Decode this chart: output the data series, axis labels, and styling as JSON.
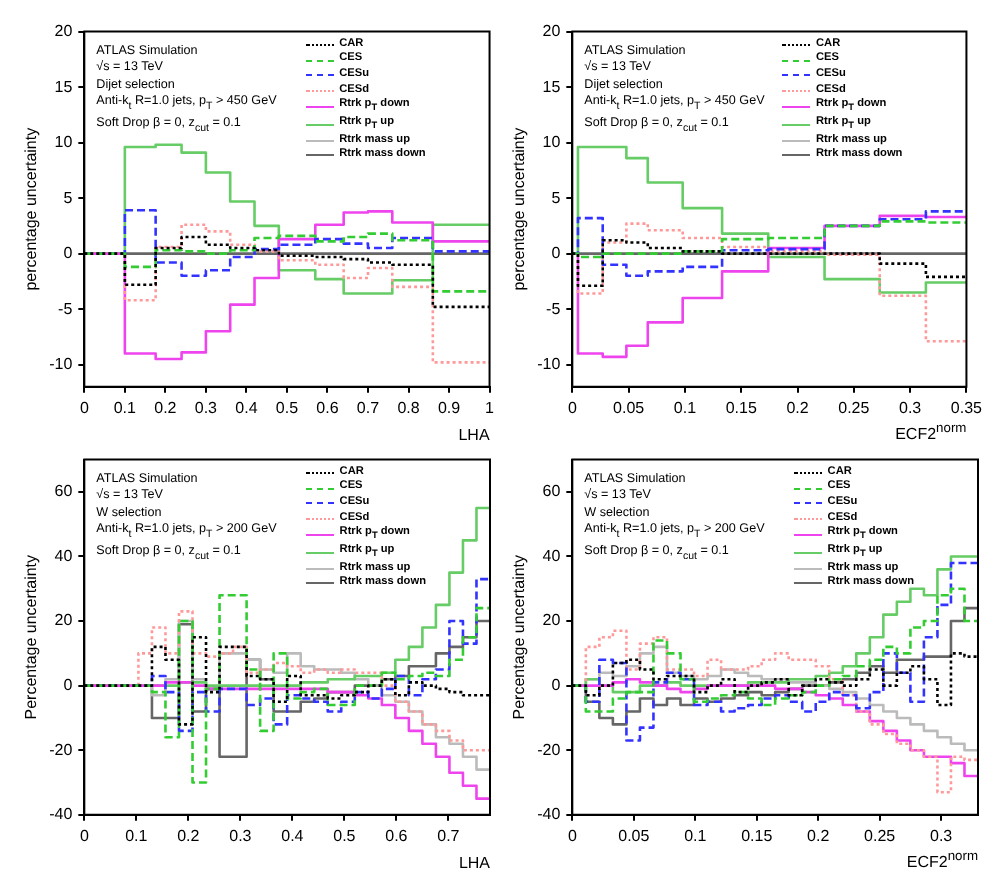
{
  "chart_data": [
    {
      "type": "step",
      "xlabel": "LHA",
      "ylabel": "percentage uncertainty",
      "legend": "top right",
      "xlim": [
        0,
        1
      ],
      "xticks": [
        0,
        0.1,
        0.2,
        0.3,
        0.4,
        0.5,
        0.6,
        0.7,
        0.8,
        0.9,
        1
      ],
      "ylim": [
        -12,
        20
      ],
      "yticks": [
        -10,
        -5,
        0,
        5,
        10,
        15,
        20
      ],
      "annotations": [
        "ATLAS Simulation",
        "√s = 13 TeV",
        "Dijet selection",
        "Anti-k$_{t}$ R=1.0 jets, p$_{T}$ > 450 GeV",
        "Soft Drop β = 0, z$_{cut}$ = 0.1"
      ],
      "x": [
        0,
        0.1,
        0.176,
        0.24,
        0.3,
        0.36,
        0.42,
        0.48,
        0.57,
        0.64,
        0.7,
        0.76,
        0.86,
        1
      ],
      "series": [
        {
          "name": "CAR",
          "color": "#000000",
          "line_style": "dotted",
          "values": [
            0,
            -2.8,
            0.5,
            1.5,
            0.8,
            0.5,
            0.3,
            -0.2,
            -0.3,
            -0.5,
            -0.8,
            -1.0,
            -4.8,
            -4.8
          ]
        },
        {
          "name": "CES",
          "color": "#33cc33",
          "line_style": "dashed",
          "values": [
            0,
            -1.2,
            0.3,
            0.2,
            0.0,
            0.3,
            1.4,
            1.6,
            1.1,
            1.5,
            1.8,
            1.2,
            -3.4,
            -3.4
          ]
        },
        {
          "name": "CESu",
          "color": "#3333ff",
          "line_style": "dashed",
          "values": [
            0,
            3.9,
            -0.8,
            -2.0,
            -1.5,
            -0.3,
            0.4,
            0.8,
            1.3,
            0.9,
            0.5,
            1.4,
            0.2,
            0.2
          ]
        },
        {
          "name": "CESd",
          "color": "#ff9999",
          "line_style": "dotted",
          "values": [
            0,
            -4.2,
            0.6,
            2.6,
            2.0,
            0.8,
            0.2,
            -0.6,
            -1.0,
            -2.2,
            -1.3,
            -3.0,
            -9.8,
            -9.8
          ]
        },
        {
          "name": "Rtrk p$_{T}$ down",
          "color": "#ee44ee",
          "line_style": "solid",
          "values": [
            0,
            -9.0,
            -9.5,
            -8.9,
            -7.0,
            -4.6,
            -2.2,
            1.3,
            2.6,
            3.7,
            3.8,
            2.8,
            1.1,
            1.1
          ]
        },
        {
          "name": "Rtrk p$_{T}$ up",
          "color": "#66cc66",
          "line_style": "solid",
          "values": [
            0,
            9.6,
            9.8,
            9.1,
            7.3,
            4.7,
            2.5,
            -1.5,
            -2.3,
            -3.6,
            -3.6,
            -2.4,
            2.6,
            2.6
          ]
        },
        {
          "name": "Rtrk mass up",
          "color": "#bbbbbb",
          "line_style": "solid",
          "values": [
            null,
            null,
            null,
            null,
            null,
            null,
            null,
            null,
            null,
            null,
            null,
            null,
            null,
            null
          ]
        },
        {
          "name": "Rtrk mass down",
          "color": "#666666",
          "line_style": "solid",
          "values": [
            0,
            0,
            0,
            0,
            0,
            0,
            0,
            0,
            0,
            0,
            0,
            0,
            0,
            0
          ]
        }
      ]
    },
    {
      "type": "step",
      "xlabel": "ECF2$^{norm}$",
      "ylabel": "percentage uncertainty",
      "legend": "top right",
      "xlim": [
        0,
        0.35
      ],
      "xticks": [
        0,
        0.05,
        0.1,
        0.15,
        0.2,
        0.25,
        0.3,
        0.35
      ],
      "ylim": [
        -12,
        20
      ],
      "yticks": [
        -10,
        -5,
        0,
        5,
        10,
        15,
        20
      ],
      "annotations": [
        "ATLAS Simulation",
        "√s = 13 TeV",
        "Dijet selection",
        "Anti-k$_{t}$ R=1.0 jets, p$_{T}$ > 450 GeV",
        "Soft Drop β = 0, z$_{cut}$ = 0.1"
      ],
      "x": [
        0,
        0.005,
        0.027,
        0.048,
        0.067,
        0.098,
        0.133,
        0.174,
        0.224,
        0.273,
        0.314,
        0.35
      ],
      "series": [
        {
          "name": "CAR",
          "color": "#000000",
          "line_style": "dotted",
          "values": [
            0,
            -2.9,
            1.2,
            1.0,
            0.5,
            0.2,
            0.0,
            0.0,
            0.0,
            -0.9,
            -2.1,
            -2.1
          ]
        },
        {
          "name": "CES",
          "color": "#33cc33",
          "line_style": "dashed",
          "values": [
            0,
            -0.3,
            0.0,
            0.0,
            0.0,
            0.2,
            1.3,
            1.4,
            2.5,
            2.9,
            2.8,
            2.8
          ]
        },
        {
          "name": "CESu",
          "color": "#3333ff",
          "line_style": "dashed",
          "values": [
            0,
            3.2,
            -1.0,
            -2.0,
            -1.6,
            -1.2,
            0.3,
            0.4,
            2.5,
            3.1,
            3.8,
            3.8
          ]
        },
        {
          "name": "CESd",
          "color": "#ff9999",
          "line_style": "dotted",
          "values": [
            0,
            -3.6,
            1.0,
            2.7,
            2.1,
            1.4,
            0.6,
            0.2,
            -0.1,
            -3.8,
            -7.9,
            -7.9
          ]
        },
        {
          "name": "Rtrk p$_{T}$ down",
          "color": "#ee44ee",
          "line_style": "solid",
          "values": [
            0,
            -9.0,
            -9.3,
            -8.3,
            -6.2,
            -4.0,
            -1.6,
            0.5,
            2.5,
            3.4,
            3.3,
            3.3
          ]
        },
        {
          "name": "Rtrk p$_{T}$ up",
          "color": "#66cc66",
          "line_style": "solid",
          "values": [
            0,
            9.6,
            9.6,
            8.6,
            6.4,
            4.1,
            1.8,
            -0.3,
            -2.3,
            -3.5,
            -2.6,
            -2.6
          ]
        },
        {
          "name": "Rtrk mass up",
          "color": "#bbbbbb",
          "line_style": "solid",
          "values": [
            null,
            null,
            null,
            null,
            null,
            null,
            null,
            null,
            null,
            null,
            null,
            null
          ]
        },
        {
          "name": "Rtrk mass down",
          "color": "#666666",
          "line_style": "solid",
          "values": [
            0,
            0,
            0,
            0,
            0,
            0,
            0,
            0,
            0,
            0,
            0,
            0
          ]
        }
      ]
    },
    {
      "type": "step",
      "xlabel": "LHA",
      "ylabel": "Percentage uncertainty",
      "legend": "top right",
      "xlim": [
        0,
        0.78
      ],
      "xticks": [
        0,
        0.1,
        0.2,
        0.3,
        0.4,
        0.5,
        0.6,
        0.7
      ],
      "ylim": [
        -40,
        70
      ],
      "yticks": [
        -40,
        -20,
        0,
        20,
        40,
        60
      ],
      "annotations": [
        "ATLAS Simulation",
        "√s = 13 TeV",
        "W selection",
        "Anti-k$_{t}$ R=1.0 jets, p$_{T}$ > 200 GeV",
        "Soft Drop β = 0, z$_{cut}$ = 0.1"
      ],
      "x": [
        0,
        0.104,
        0.13,
        0.156,
        0.182,
        0.208,
        0.234,
        0.26,
        0.286,
        0.312,
        0.338,
        0.364,
        0.39,
        0.416,
        0.442,
        0.468,
        0.494,
        0.52,
        0.546,
        0.572,
        0.598,
        0.624,
        0.65,
        0.676,
        0.702,
        0.728,
        0.754,
        0.78
      ],
      "series": [
        {
          "name": "CAR",
          "color": "#000000",
          "line_style": "dotted",
          "values": [
            0,
            0,
            12,
            8,
            -12,
            15,
            -2,
            12,
            12,
            3,
            2,
            -5,
            3,
            -3,
            -3,
            -4,
            -3,
            -2,
            0,
            2,
            -3,
            1,
            0,
            -1,
            -2,
            -3,
            -3,
            -3
          ]
        },
        {
          "name": "CES",
          "color": "#33cc33",
          "line_style": "dashed",
          "values": [
            0,
            0,
            -2,
            -16,
            20,
            -30,
            -1,
            28,
            28,
            5,
            -14,
            10,
            -4,
            -2,
            -1,
            -6,
            -6,
            0,
            0,
            4,
            2,
            3,
            4,
            3,
            8,
            15,
            24,
            24
          ]
        },
        {
          "name": "CESu",
          "color": "#3333ff",
          "line_style": "dashed",
          "values": [
            0,
            0,
            3,
            -2,
            -14,
            -2,
            -8,
            -1,
            -1,
            -6,
            -4,
            -12,
            -3,
            -4,
            -5,
            -8,
            -5,
            -2,
            -4,
            -1,
            3,
            -3,
            2,
            5,
            20,
            13,
            33,
            33
          ]
        },
        {
          "name": "CESd",
          "color": "#ff9999",
          "line_style": "dotted",
          "values": [
            0,
            10,
            18,
            10,
            23,
            10,
            9,
            10,
            12,
            4,
            5,
            7,
            6,
            4,
            5,
            4,
            5,
            4,
            4,
            0,
            -5,
            -8,
            -12,
            -14,
            -17,
            -20,
            -20,
            -20
          ]
        },
        {
          "name": "Rtrk p$_{T}$ down",
          "color": "#ee44ee",
          "line_style": "solid",
          "values": [
            0,
            0,
            0,
            1,
            1,
            0,
            -1,
            -1,
            -1,
            -1,
            -1,
            -1,
            -1,
            -1,
            -1,
            -2,
            -2,
            -3,
            -4,
            -6,
            -10,
            -14,
            -18,
            -22,
            -27,
            -31,
            -35,
            -35
          ]
        },
        {
          "name": "Rtrk p$_{T}$ up",
          "color": "#66cc66",
          "line_style": "solid",
          "values": [
            0,
            0,
            0,
            0,
            1,
            1,
            0,
            0,
            0,
            0,
            0,
            0,
            0,
            1,
            1,
            2,
            2,
            3,
            3,
            4,
            8,
            12,
            18,
            25,
            35,
            45,
            55,
            55
          ]
        },
        {
          "name": "Rtrk mass up",
          "color": "#bbbbbb",
          "line_style": "solid",
          "values": [
            0,
            0,
            -3,
            2,
            20,
            2,
            -1,
            10,
            10,
            8,
            5,
            4,
            10,
            6,
            5,
            5,
            4,
            2,
            0,
            -3,
            -5,
            -8,
            -12,
            -16,
            -18,
            -22,
            -26,
            -26
          ]
        },
        {
          "name": "Rtrk mass down",
          "color": "#666666",
          "line_style": "solid",
          "values": [
            0,
            0,
            -10,
            -10,
            19,
            -8,
            -1,
            -22,
            -22,
            8,
            2,
            -8,
            -8,
            -5,
            -4,
            -2,
            -2,
            0,
            0,
            2,
            3,
            6,
            6,
            10,
            12,
            15,
            20,
            20
          ]
        }
      ]
    },
    {
      "type": "step",
      "xlabel": "ECF2$^{norm}$",
      "ylabel": "Percentage uncertainty",
      "legend": "top right",
      "xlim": [
        0,
        0.33
      ],
      "xticks": [
        0,
        0.05,
        0.1,
        0.15,
        0.2,
        0.25,
        0.3
      ],
      "ylim": [
        -40,
        70
      ],
      "yticks": [
        -40,
        -20,
        0,
        20,
        40,
        60
      ],
      "annotations": [
        "ATLAS Simulation",
        "√s = 13 TeV",
        "W selection",
        "Anti-k$_{t}$ R=1.0 jets, p$_{T}$ > 200 GeV",
        "Soft Drop β = 0, z$_{cut}$ = 0.1"
      ],
      "x": [
        0,
        0.011,
        0.022,
        0.033,
        0.044,
        0.055,
        0.066,
        0.077,
        0.088,
        0.099,
        0.11,
        0.121,
        0.132,
        0.143,
        0.154,
        0.165,
        0.176,
        0.187,
        0.198,
        0.209,
        0.22,
        0.231,
        0.242,
        0.253,
        0.264,
        0.275,
        0.286,
        0.297,
        0.308,
        0.319,
        0.33
      ],
      "series": [
        {
          "name": "CAR",
          "color": "#000000",
          "line_style": "dotted",
          "values": [
            0,
            -3,
            0,
            7,
            8,
            5,
            2,
            3,
            3,
            -2,
            0,
            2,
            -2,
            0,
            1,
            2,
            -3,
            0,
            2,
            1,
            0,
            2,
            5,
            0,
            4,
            6,
            2,
            -6,
            10,
            9,
            9
          ]
        },
        {
          "name": "CES",
          "color": "#33cc33",
          "line_style": "dashed",
          "values": [
            0,
            -8,
            -8,
            -4,
            -2,
            -2,
            14,
            10,
            2,
            -5,
            -4,
            -3,
            -2,
            -4,
            -6,
            -4,
            -3,
            -2,
            0,
            2,
            3,
            6,
            8,
            12,
            10,
            18,
            20,
            28,
            30,
            20,
            20
          ]
        },
        {
          "name": "CESu",
          "color": "#3333ff",
          "line_style": "dashed",
          "values": [
            0,
            -5,
            8,
            7,
            -17,
            -13,
            1,
            4,
            2,
            -6,
            -5,
            -8,
            -7,
            -6,
            -4,
            -3,
            -5,
            -8,
            -5,
            -2,
            -3,
            -7,
            -2,
            10,
            4,
            -5,
            15,
            25,
            38,
            38,
            38
          ]
        },
        {
          "name": "CESd",
          "color": "#ff9999",
          "line_style": "dotted",
          "values": [
            0,
            12,
            15,
            17,
            5,
            13,
            15,
            5,
            5,
            3,
            8,
            5,
            5,
            6,
            8,
            10,
            8,
            8,
            6,
            2,
            -3,
            -8,
            -12,
            -15,
            -18,
            -20,
            -22,
            -33,
            -22,
            -23,
            -23
          ]
        },
        {
          "name": "Rtrk p$_{T}$ down",
          "color": "#ee44ee",
          "line_style": "solid",
          "values": [
            0,
            0,
            0,
            1,
            2,
            1,
            0,
            -1,
            -2,
            -1,
            0,
            0,
            0,
            0,
            0,
            -1,
            -1,
            -2,
            -3,
            -4,
            -6,
            -8,
            -11,
            -14,
            -17,
            -20,
            -22,
            -22,
            -24,
            -28,
            -28
          ]
        },
        {
          "name": "Rtrk p$_{T}$ up",
          "color": "#66cc66",
          "line_style": "solid",
          "values": [
            0,
            2,
            0,
            -2,
            -2,
            0,
            0,
            1,
            0,
            0,
            0,
            0,
            0,
            1,
            1,
            1,
            2,
            2,
            3,
            4,
            6,
            10,
            15,
            22,
            26,
            30,
            28,
            36,
            40,
            40,
            40
          ]
        },
        {
          "name": "Rtrk mass up",
          "color": "#bbbbbb",
          "line_style": "solid",
          "values": [
            0,
            2,
            4,
            3,
            6,
            10,
            12,
            4,
            3,
            2,
            3,
            5,
            4,
            3,
            2,
            2,
            1,
            1,
            0,
            -1,
            -2,
            -4,
            -6,
            -8,
            -10,
            -12,
            -14,
            -16,
            -18,
            -20,
            -20
          ]
        },
        {
          "name": "Rtrk mass down",
          "color": "#666666",
          "line_style": "solid",
          "values": [
            0,
            -5,
            -10,
            -12,
            -8,
            -4,
            -6,
            -4,
            -6,
            -4,
            -5,
            -4,
            -3,
            -2,
            -3,
            -2,
            -1,
            0,
            0,
            1,
            2,
            4,
            6,
            4,
            8,
            8,
            9,
            9,
            20,
            24,
            24
          ]
        }
      ]
    }
  ]
}
